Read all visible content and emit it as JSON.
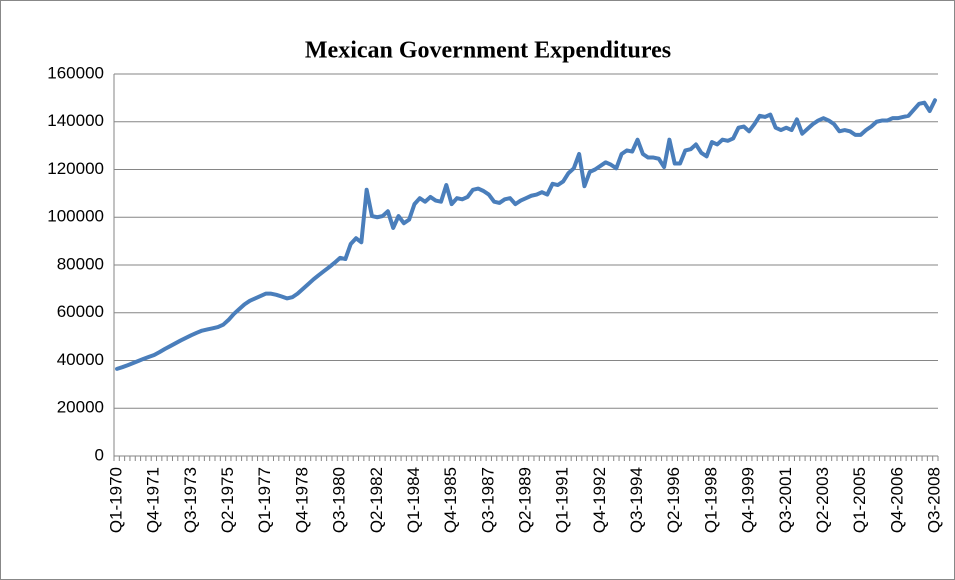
{
  "chart_data": {
    "type": "line",
    "title": "Mexican Government Expenditures",
    "categories": [
      "Q1-1970",
      null,
      null,
      null,
      null,
      null,
      null,
      "Q4-1971",
      null,
      null,
      null,
      null,
      null,
      null,
      "Q3-1973",
      null,
      null,
      null,
      null,
      null,
      null,
      "Q2-1975",
      null,
      null,
      null,
      null,
      null,
      null,
      "Q1-1977",
      null,
      null,
      null,
      null,
      null,
      null,
      "Q4-1978",
      null,
      null,
      null,
      null,
      null,
      null,
      "Q3-1980",
      null,
      null,
      null,
      null,
      null,
      null,
      "Q2-1982",
      null,
      null,
      null,
      null,
      null,
      null,
      "Q1-1984",
      null,
      null,
      null,
      null,
      null,
      null,
      "Q4-1985",
      null,
      null,
      null,
      null,
      null,
      null,
      "Q3-1987",
      null,
      null,
      null,
      null,
      null,
      null,
      "Q2-1989",
      null,
      null,
      null,
      null,
      null,
      null,
      "Q1-1991",
      null,
      null,
      null,
      null,
      null,
      null,
      "Q4-1992",
      null,
      null,
      null,
      null,
      null,
      null,
      "Q3-1994",
      null,
      null,
      null,
      null,
      null,
      null,
      "Q2-1996",
      null,
      null,
      null,
      null,
      null,
      null,
      "Q1-1998",
      null,
      null,
      null,
      null,
      null,
      null,
      "Q4-1999",
      null,
      null,
      null,
      null,
      null,
      null,
      "Q3-2001",
      null,
      null,
      null,
      null,
      null,
      null,
      "Q2-2003",
      null,
      null,
      null,
      null,
      null,
      null,
      "Q1-2005",
      null,
      null,
      null,
      null,
      null,
      null,
      "Q4-2006",
      null,
      null,
      null,
      null,
      null,
      null,
      "Q3-2008"
    ],
    "values": [
      36500,
      37200,
      38000,
      38900,
      39800,
      40700,
      41500,
      42300,
      43500,
      44800,
      46000,
      47200,
      48400,
      49500,
      50600,
      51600,
      52500,
      53000,
      53500,
      54000,
      55000,
      57000,
      59500,
      61500,
      63500,
      65000,
      66000,
      67000,
      68000,
      68000,
      67500,
      66800,
      66000,
      66500,
      68000,
      70000,
      72000,
      74000,
      75800,
      77500,
      79200,
      81000,
      83000,
      82500,
      88800,
      91200,
      89500,
      111500,
      100500,
      100000,
      100500,
      102500,
      95500,
      100500,
      97500,
      99000,
      105500,
      108000,
      106500,
      108500,
      107000,
      106500,
      113500,
      105500,
      108000,
      107500,
      108500,
      111500,
      112000,
      111000,
      109500,
      106500,
      106000,
      107500,
      108000,
      105500,
      107000,
      108000,
      109000,
      109500,
      110500,
      109500,
      114000,
      113500,
      115000,
      118500,
      120500,
      126500,
      113000,
      119000,
      120000,
      121500,
      123000,
      122000,
      120500,
      126500,
      128000,
      127500,
      132500,
      126500,
      125000,
      125000,
      124500,
      121000,
      132500,
      122500,
      122500,
      128000,
      128500,
      130500,
      127000,
      125500,
      131500,
      130500,
      132500,
      132000,
      133000,
      137500,
      138000,
      136000,
      139000,
      142500,
      142000,
      143000,
      137500,
      136500,
      137500,
      136500,
      141000,
      135000,
      137000,
      139000,
      140500,
      141500,
      140500,
      139000,
      136000,
      136500,
      136000,
      134500,
      134500,
      136500,
      138000,
      140000,
      140500,
      140500,
      141500,
      141500,
      142000,
      142500,
      145000,
      147500,
      148000,
      144500,
      149000
    ],
    "color": "#4a7ebb",
    "ylim": [
      0,
      160000
    ],
    "yticks": [
      0,
      20000,
      40000,
      60000,
      80000,
      100000,
      120000,
      140000,
      160000
    ],
    "grid": true
  }
}
